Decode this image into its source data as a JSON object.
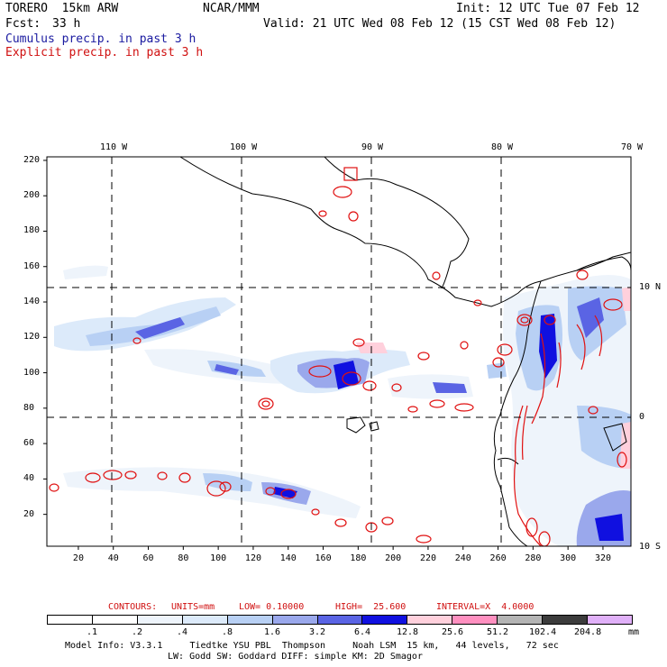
{
  "header": {
    "model": "TORERO  15km ARW",
    "org": "NCAR/MMM",
    "init": "Init: 12 UTC Tue 07 Feb 12",
    "fcst_label": "Fcst:",
    "fcst_value": "33 h",
    "valid": "Valid: 21 UTC Wed 08 Feb 12 (15 CST Wed 08 Feb 12)",
    "cumulus": "Cumulus precip. in past 3 h",
    "explicit": "Explicit precip. in past 3 h"
  },
  "colors": {
    "cumulus": "#1a1aa0",
    "explicit": "#d01010"
  },
  "map": {
    "lon_labels": [
      "110 W",
      "100 W",
      "90 W",
      "80 W",
      "70 W"
    ],
    "lat_labels": [
      "10 N",
      "0",
      "10 S"
    ],
    "y_ticks": [
      "220",
      "200",
      "180",
      "160",
      "140",
      "120",
      "100",
      "80",
      "60",
      "40",
      "20"
    ],
    "x_ticks": [
      "20",
      "40",
      "60",
      "80",
      "100",
      "120",
      "140",
      "160",
      "180",
      "200",
      "220",
      "240",
      "260",
      "280",
      "300",
      "320"
    ]
  },
  "contours": {
    "prefix": "CONTOURS:",
    "units": "UNITS=mm",
    "low": "LOW= 0.10000",
    "high": "HIGH=  25.600",
    "interval": "INTERVAL=X  4.0000"
  },
  "colorbar": {
    "labels": [
      ".1",
      ".2",
      ".4",
      ".8",
      "1.6",
      "3.2",
      "6.4",
      "12.8",
      "25.6",
      "51.2",
      "102.4",
      "204.8"
    ],
    "unit": "mm",
    "colors": [
      "#ffffff",
      "#ffffff",
      "#eef4fb",
      "#dceafa",
      "#b8d0f4",
      "#9aa8ec",
      "#5a64e4",
      "#1010e0",
      "#ffd0dc",
      "#ff90c0",
      "#b4b4b4",
      "#3c3c3c",
      "#e0b0f8"
    ]
  },
  "footer": {
    "line1": "Model Info: V3.3.1     Tiedtke YSU PBL  Thompson     Noah LSM  15 km,   44 levels,   72 sec",
    "line2": "LW: Godd SW: Goddard DIFF: simple KM: 2D Smagor"
  }
}
